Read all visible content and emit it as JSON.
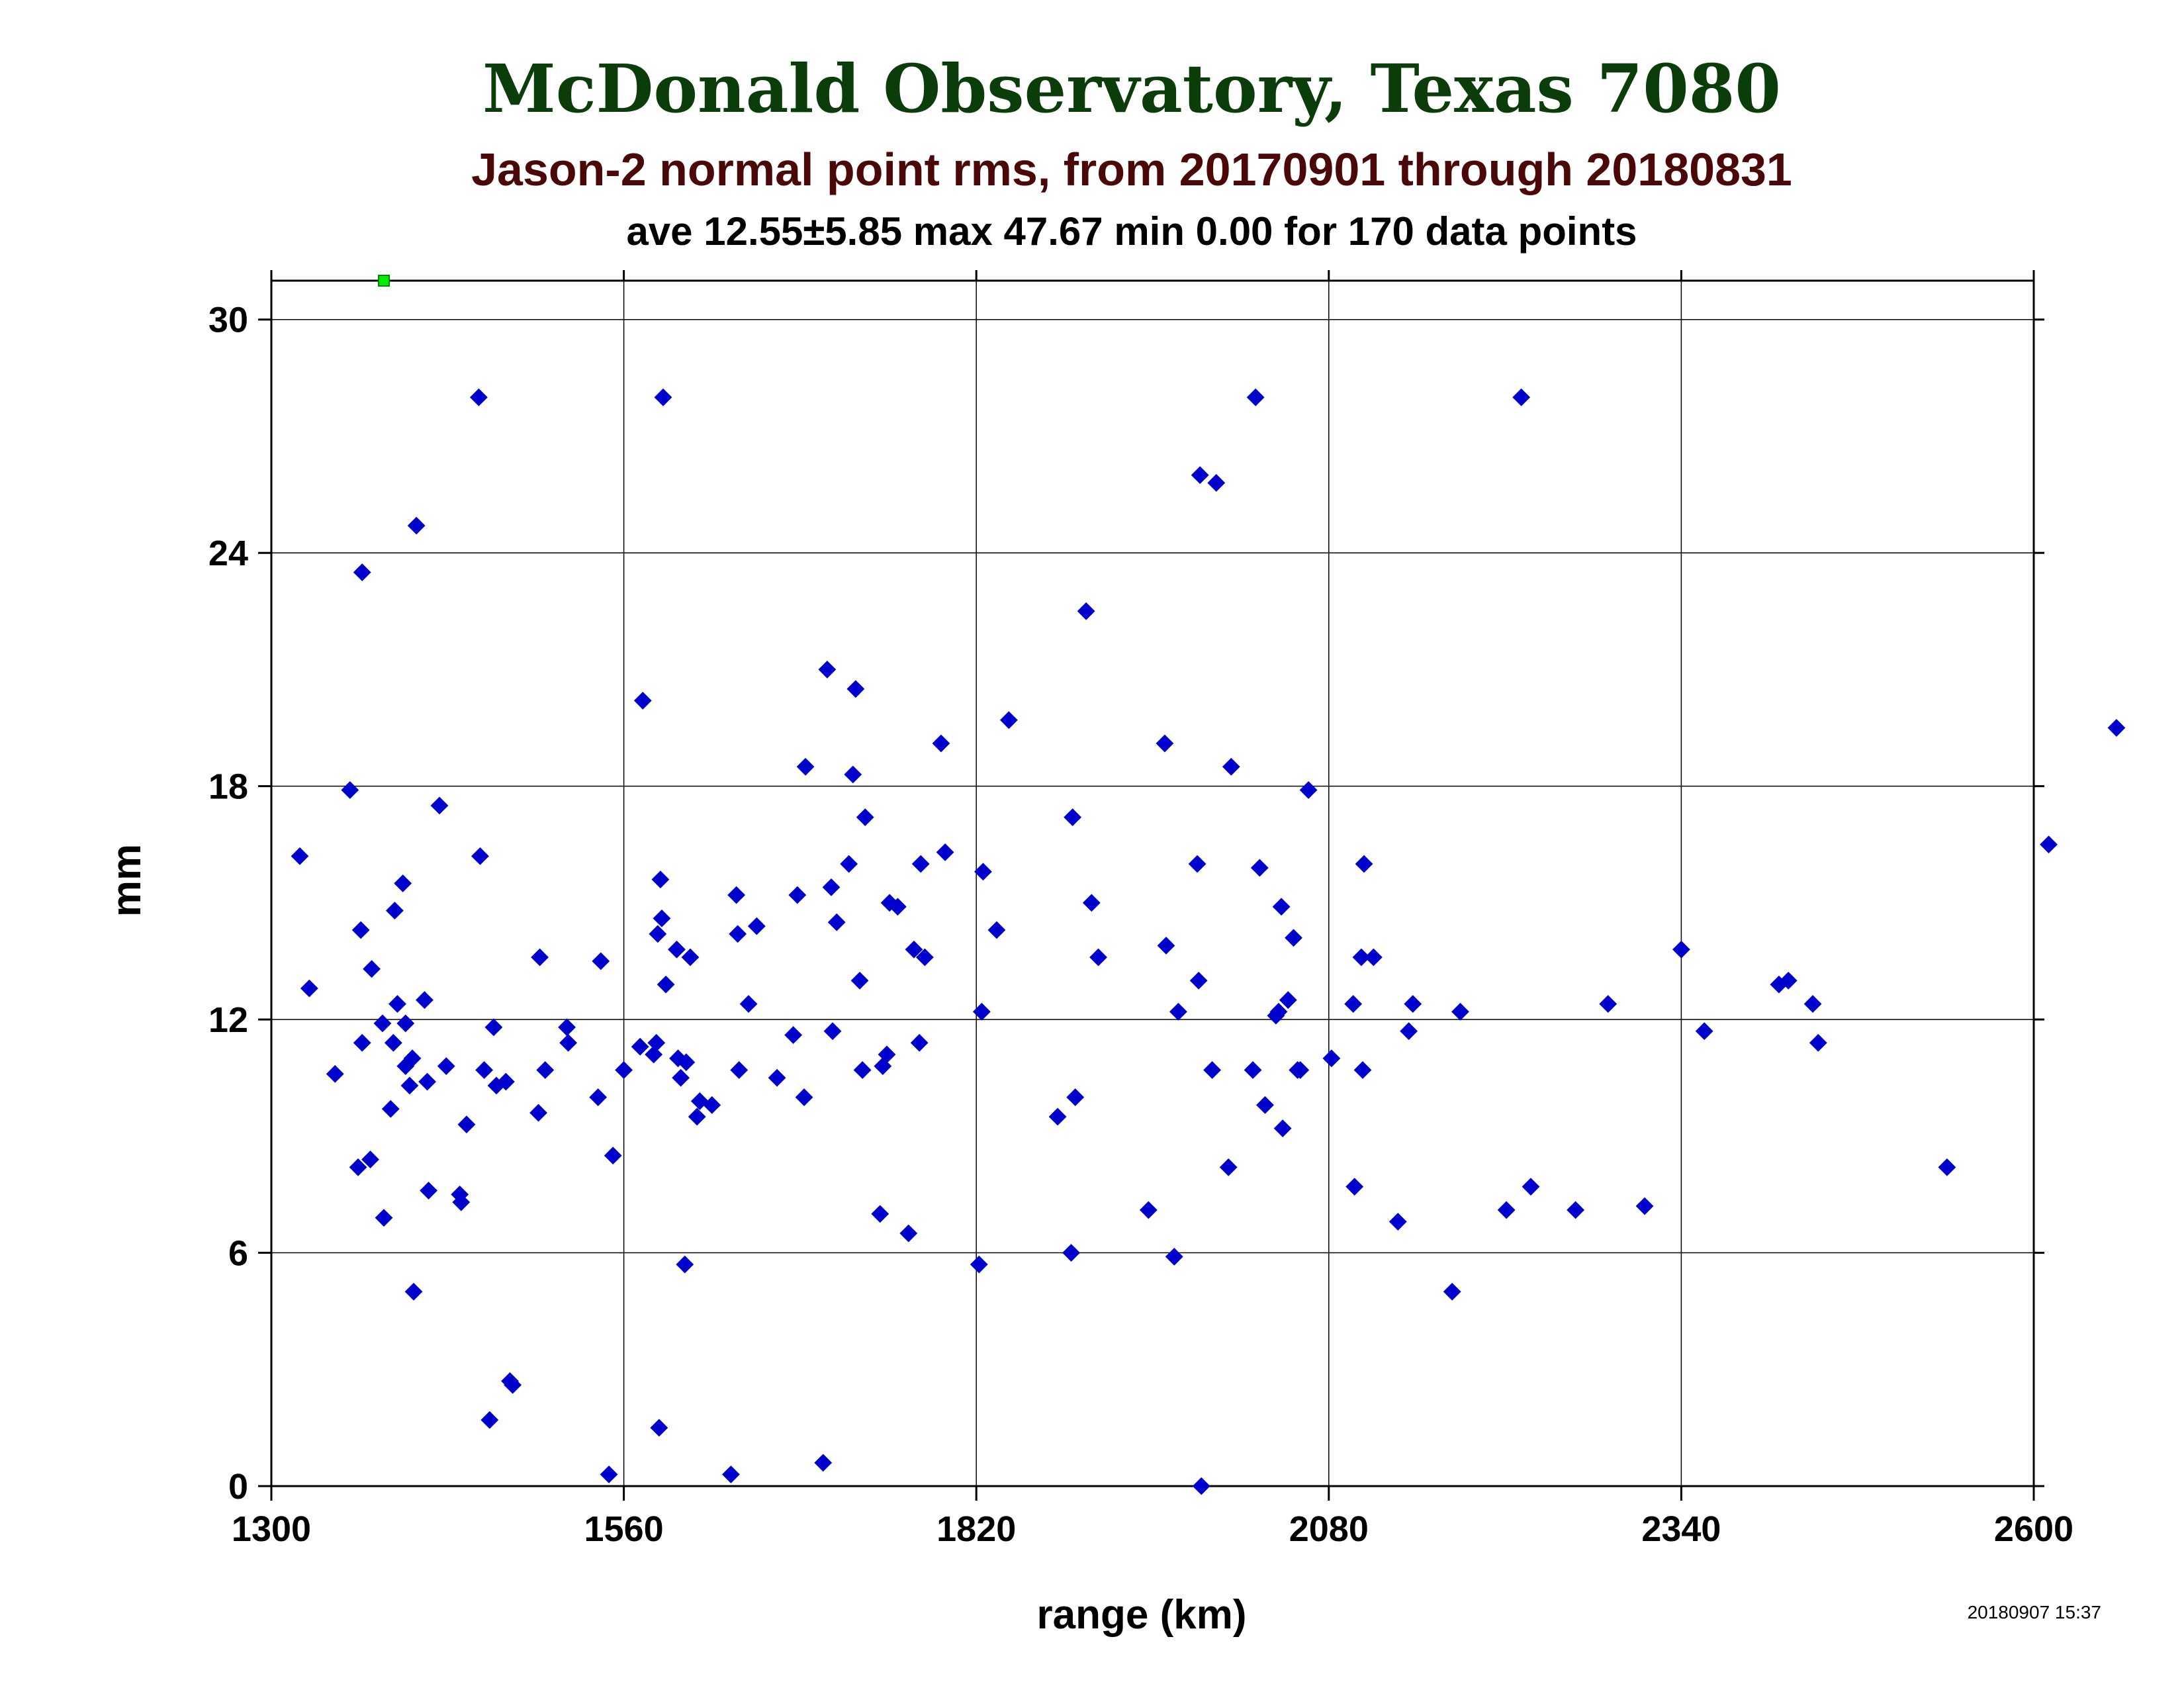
{
  "chart_data": {
    "type": "scatter",
    "title": "McDonald Observatory, Texas 7080",
    "subtitle": "Jason-2 normal point rms, from 20170901 through 20180831",
    "stats": "ave 12.55±5.85 max 47.67 min 0.00 for 170 data points",
    "xlabel": "range (km)",
    "ylabel": "mm",
    "timestamp": "20180907 15:37",
    "xlim": [
      1300,
      2600
    ],
    "ylim": [
      0,
      31
    ],
    "xticks": [
      "1300",
      "1560",
      "1820",
      "2080",
      "2340",
      "2600"
    ],
    "yticks": [
      "0",
      "6",
      "12",
      "18",
      "24",
      "30"
    ],
    "grid": true,
    "colors": {
      "points": "#0000cc",
      "outlier": "#00ee00",
      "title": "#0a3d0a",
      "subtitle": "#4a0808",
      "text": "#000000",
      "grid": "#000000"
    },
    "outliers": [
      {
        "x": 1383,
        "y": 31
      }
    ],
    "series": [
      {
        "points": [
          [
            1321,
            16.2
          ],
          [
            1328,
            12.8
          ],
          [
            1347,
            10.6
          ],
          [
            1358,
            17.9
          ],
          [
            1364,
            8.2
          ],
          [
            1366,
            14.3
          ],
          [
            1367,
            23.5
          ],
          [
            1367,
            11.4
          ],
          [
            1373,
            8.4
          ],
          [
            1374,
            13.3
          ],
          [
            1382,
            11.9
          ],
          [
            1383,
            6.9
          ],
          [
            1388,
            9.7
          ],
          [
            1390,
            11.4
          ],
          [
            1391,
            14.8
          ],
          [
            1393,
            12.4
          ],
          [
            1397,
            15.5
          ],
          [
            1399,
            11.9
          ],
          [
            1399,
            10.8
          ],
          [
            1402,
            10.3
          ],
          [
            1404,
            11.0
          ],
          [
            1405,
            5.0
          ],
          [
            1407,
            24.7
          ],
          [
            1413,
            12.5
          ],
          [
            1415,
            10.4
          ],
          [
            1416,
            7.6
          ],
          [
            1424,
            17.5
          ],
          [
            1429,
            10.8
          ],
          [
            1439,
            7.5
          ],
          [
            1440,
            7.3
          ],
          [
            1444,
            9.3
          ],
          [
            1453,
            28.0
          ],
          [
            1454,
            16.2
          ],
          [
            1457,
            10.7
          ],
          [
            1461,
            1.7
          ],
          [
            1464,
            11.8
          ],
          [
            1466,
            10.3
          ],
          [
            1473,
            10.4
          ],
          [
            1476,
            2.7
          ],
          [
            1478,
            2.6
          ],
          [
            1497,
            9.6
          ],
          [
            1498,
            13.6
          ],
          [
            1502,
            10.7
          ],
          [
            1518,
            11.8
          ],
          [
            1519,
            11.4
          ],
          [
            1541,
            10.0
          ],
          [
            1543,
            13.5
          ],
          [
            1549,
            0.3
          ],
          [
            1552,
            8.5
          ],
          [
            1560,
            10.7
          ],
          [
            1572,
            11.3
          ],
          [
            1574,
            20.2
          ],
          [
            1582,
            11.1
          ],
          [
            1584,
            11.4
          ],
          [
            1585,
            14.2
          ],
          [
            1586,
            1.5
          ],
          [
            1587,
            15.6
          ],
          [
            1588,
            14.6
          ],
          [
            1589,
            28.0
          ],
          [
            1591,
            12.9
          ],
          [
            1599,
            13.8
          ],
          [
            1600,
            11.0
          ],
          [
            1602,
            10.5
          ],
          [
            1605,
            5.7
          ],
          [
            1606,
            10.9
          ],
          [
            1609,
            13.6
          ],
          [
            1614,
            9.5
          ],
          [
            1616,
            9.9
          ],
          [
            1625,
            9.8
          ],
          [
            1639,
            0.3
          ],
          [
            1643,
            15.2
          ],
          [
            1644,
            14.2
          ],
          [
            1645,
            10.7
          ],
          [
            1652,
            12.4
          ],
          [
            1658,
            14.4
          ],
          [
            1673,
            10.5
          ],
          [
            1685,
            11.6
          ],
          [
            1688,
            15.2
          ],
          [
            1693,
            10.0
          ],
          [
            1694,
            18.5
          ],
          [
            1707,
            0.6
          ],
          [
            1710,
            21.0
          ],
          [
            1713,
            15.4
          ],
          [
            1714,
            11.7
          ],
          [
            1717,
            14.5
          ],
          [
            1726,
            16.0
          ],
          [
            1729,
            18.3
          ],
          [
            1731,
            20.5
          ],
          [
            1734,
            13.0
          ],
          [
            1736,
            10.7
          ],
          [
            1738,
            17.2
          ],
          [
            1749,
            7.0
          ],
          [
            1751,
            10.8
          ],
          [
            1754,
            11.1
          ],
          [
            1756,
            15.0
          ],
          [
            1762,
            14.9
          ],
          [
            1770,
            6.5
          ],
          [
            1774,
            13.8
          ],
          [
            1778,
            11.4
          ],
          [
            1779,
            16.0
          ],
          [
            1782,
            13.6
          ],
          [
            1794,
            19.1
          ],
          [
            1797,
            16.3
          ],
          [
            1822,
            5.7
          ],
          [
            1824,
            12.2
          ],
          [
            1825,
            15.8
          ],
          [
            1835,
            14.3
          ],
          [
            1844,
            19.7
          ],
          [
            1880,
            9.5
          ],
          [
            1890,
            6.0
          ],
          [
            1891,
            17.2
          ],
          [
            1893,
            10.0
          ],
          [
            1901,
            22.5
          ],
          [
            1905,
            15.0
          ],
          [
            1910,
            13.6
          ],
          [
            1947,
            7.1
          ],
          [
            1959,
            19.1
          ],
          [
            1960,
            13.9
          ],
          [
            1966,
            5.9
          ],
          [
            1969,
            12.2
          ],
          [
            1983,
            16.0
          ],
          [
            1984,
            13.0
          ],
          [
            1985,
            26.0
          ],
          [
            1994,
            10.7
          ],
          [
            1997,
            25.8
          ],
          [
            2006,
            8.2
          ],
          [
            2008,
            18.5
          ],
          [
            2024,
            10.7
          ],
          [
            2026,
            28.0
          ],
          [
            2029,
            15.9
          ],
          [
            2033,
            9.8
          ],
          [
            2041,
            12.1
          ],
          [
            2043,
            12.2
          ],
          [
            2045,
            14.9
          ],
          [
            2046,
            9.2
          ],
          [
            2050,
            12.5
          ],
          [
            2054,
            14.1
          ],
          [
            2057,
            10.7
          ],
          [
            2059,
            10.7
          ],
          [
            2065,
            17.9
          ],
          [
            2082,
            11.0
          ],
          [
            2098,
            12.4
          ],
          [
            2099,
            7.7
          ],
          [
            2104,
            13.6
          ],
          [
            2105,
            10.7
          ],
          [
            2106,
            16.0
          ],
          [
            2113,
            13.6
          ],
          [
            2131,
            6.8
          ],
          [
            2139,
            11.7
          ],
          [
            2142,
            12.4
          ],
          [
            2171,
            5.0
          ],
          [
            2177,
            12.2
          ],
          [
            2211,
            7.1
          ],
          [
            2222,
            28.0
          ],
          [
            2229,
            7.7
          ],
          [
            2262,
            7.1
          ],
          [
            2286,
            12.4
          ],
          [
            2313,
            7.2
          ],
          [
            2340,
            13.8
          ],
          [
            2357,
            11.7
          ],
          [
            2412,
            12.9
          ],
          [
            2419,
            13.0
          ],
          [
            2437,
            12.4
          ],
          [
            2441,
            11.4
          ],
          [
            2536,
            8.2
          ],
          [
            2611,
            16.5
          ],
          [
            2661,
            19.5
          ],
          [
            1986,
            0.0
          ]
        ]
      }
    ]
  }
}
